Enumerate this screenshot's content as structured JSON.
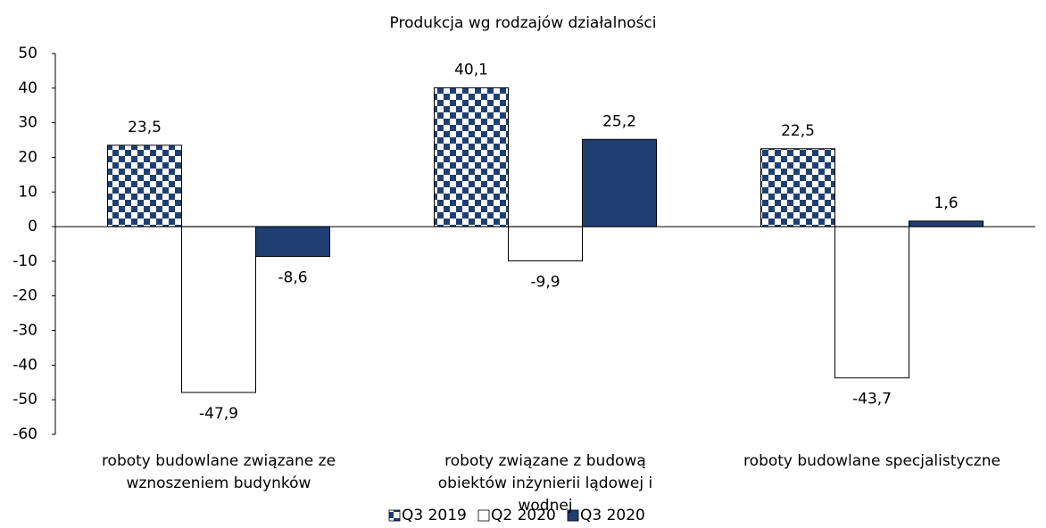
{
  "chart_data": {
    "type": "bar",
    "title": "Produkcja wg rodzajów działalności",
    "categories": [
      "roboty budowlane związane ze wznoszeniem budynków",
      "roboty związane z budową obiektów inżynierii lądowej i wodnej",
      "roboty budowlane specjalistyczne"
    ],
    "series": [
      {
        "name": "Q3 2019",
        "color": "#1f3f73",
        "pattern": "checkered",
        "values": [
          23.5,
          40.1,
          22.5
        ],
        "value_labels": [
          "23,5",
          "40,1",
          "22,5"
        ]
      },
      {
        "name": "Q2 2020",
        "color": "#ffffff",
        "values": [
          -47.9,
          -9.9,
          -43.7
        ],
        "value_labels": [
          "-47,9",
          "-9,9",
          "-43,7"
        ]
      },
      {
        "name": "Q3 2020",
        "color": "#1f3f73",
        "values": [
          -8.6,
          25.2,
          1.6
        ],
        "value_labels": [
          "-8,6",
          "25,2",
          "1,6"
        ]
      }
    ],
    "ylim": [
      -60,
      50
    ],
    "yticks": [
      -60,
      -50,
      -40,
      -30,
      -20,
      -10,
      0,
      10,
      20,
      30,
      40,
      50
    ],
    "grid": false,
    "legend": "bottom"
  }
}
